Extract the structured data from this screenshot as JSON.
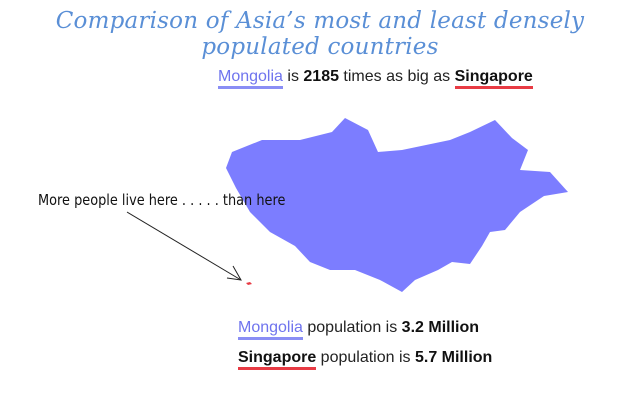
{
  "title": "Comparison of Asia’s most and least densely populated countries",
  "size_comparison": {
    "country_a": "Mongolia",
    "text_mid": " is ",
    "factor": "2185",
    "text_after": " times as big as ",
    "country_b": "Singapore"
  },
  "annotation": "More people live here . . . . . than here",
  "population": [
    {
      "country": "Mongolia",
      "text": " population is ",
      "value": "3.2 Million"
    },
    {
      "country": "Singapore",
      "text": " population is ",
      "value": "5.7 Million"
    }
  ],
  "colors": {
    "title": "#5a8fd6",
    "mongolia": "#7c7dff",
    "singapore": "#e83b44"
  }
}
